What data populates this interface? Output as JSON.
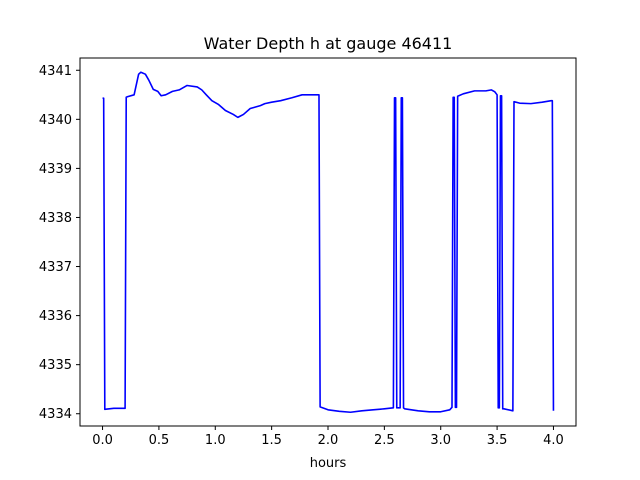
{
  "chart_data": {
    "type": "line",
    "title": "Water Depth h at gauge 46411",
    "xlabel": "hours",
    "ylabel": "",
    "xlim": [
      -0.2,
      4.2
    ],
    "ylim": [
      4333.75,
      4341.25
    ],
    "xticks": [
      0.0,
      0.5,
      1.0,
      1.5,
      2.0,
      2.5,
      3.0,
      3.5,
      4.0
    ],
    "xtick_labels": [
      "0.0",
      "0.5",
      "1.0",
      "1.5",
      "2.0",
      "2.5",
      "3.0",
      "3.5",
      "4.0"
    ],
    "yticks": [
      4334,
      4335,
      4336,
      4337,
      4338,
      4339,
      4340,
      4341
    ],
    "ytick_labels": [
      "4334",
      "4335",
      "4336",
      "4337",
      "4338",
      "4339",
      "4340",
      "4341"
    ],
    "grid": false,
    "series": [
      {
        "color": "#0000ff",
        "x": [
          0.0,
          0.01,
          0.02,
          0.1,
          0.2,
          0.21,
          0.22,
          0.28,
          0.32,
          0.34,
          0.38,
          0.41,
          0.45,
          0.49,
          0.52,
          0.56,
          0.62,
          0.68,
          0.75,
          0.84,
          0.88,
          0.92,
          0.97,
          1.03,
          1.09,
          1.16,
          1.2,
          1.25,
          1.31,
          1.4,
          1.44,
          1.5,
          1.58,
          1.68,
          1.77,
          1.86,
          1.92,
          1.93,
          2.0,
          2.1,
          2.2,
          2.3,
          2.4,
          2.5,
          2.58,
          2.59,
          2.6,
          2.61,
          2.64,
          2.65,
          2.66,
          2.67,
          2.68,
          2.8,
          2.9,
          3.0,
          3.08,
          3.1,
          3.11,
          3.12,
          3.13,
          3.14,
          3.15,
          3.2,
          3.3,
          3.4,
          3.45,
          3.48,
          3.5,
          3.51,
          3.52,
          3.53,
          3.54,
          3.55,
          3.56,
          3.64,
          3.65,
          3.7,
          3.8,
          3.9,
          3.98,
          3.99,
          4.0
        ],
        "values": [
          4340.43,
          4340.43,
          4334.09,
          4334.11,
          4334.11,
          4340.45,
          4340.46,
          4340.5,
          4340.92,
          4340.96,
          4340.92,
          4340.8,
          4340.61,
          4340.57,
          4340.48,
          4340.5,
          4340.57,
          4340.6,
          4340.69,
          4340.66,
          4340.6,
          4340.5,
          4340.38,
          4340.3,
          4340.18,
          4340.1,
          4340.04,
          4340.1,
          4340.22,
          4340.28,
          4340.32,
          4340.35,
          4340.38,
          4340.44,
          4340.5,
          4340.5,
          4340.5,
          4334.14,
          4334.08,
          4334.05,
          4334.03,
          4334.06,
          4334.08,
          4334.1,
          4334.12,
          4340.44,
          4340.44,
          4334.12,
          4334.12,
          4340.44,
          4340.44,
          4334.12,
          4334.1,
          4334.06,
          4334.04,
          4334.04,
          4334.08,
          4334.13,
          4340.45,
          4340.45,
          4334.13,
          4334.13,
          4340.47,
          4340.52,
          4340.58,
          4340.58,
          4340.6,
          4340.56,
          4340.5,
          4334.12,
          4334.12,
          4340.48,
          4340.48,
          4334.1,
          4334.1,
          4334.06,
          4340.36,
          4340.33,
          4340.32,
          4340.35,
          4340.38,
          4340.38,
          4334.06
        ]
      }
    ]
  }
}
